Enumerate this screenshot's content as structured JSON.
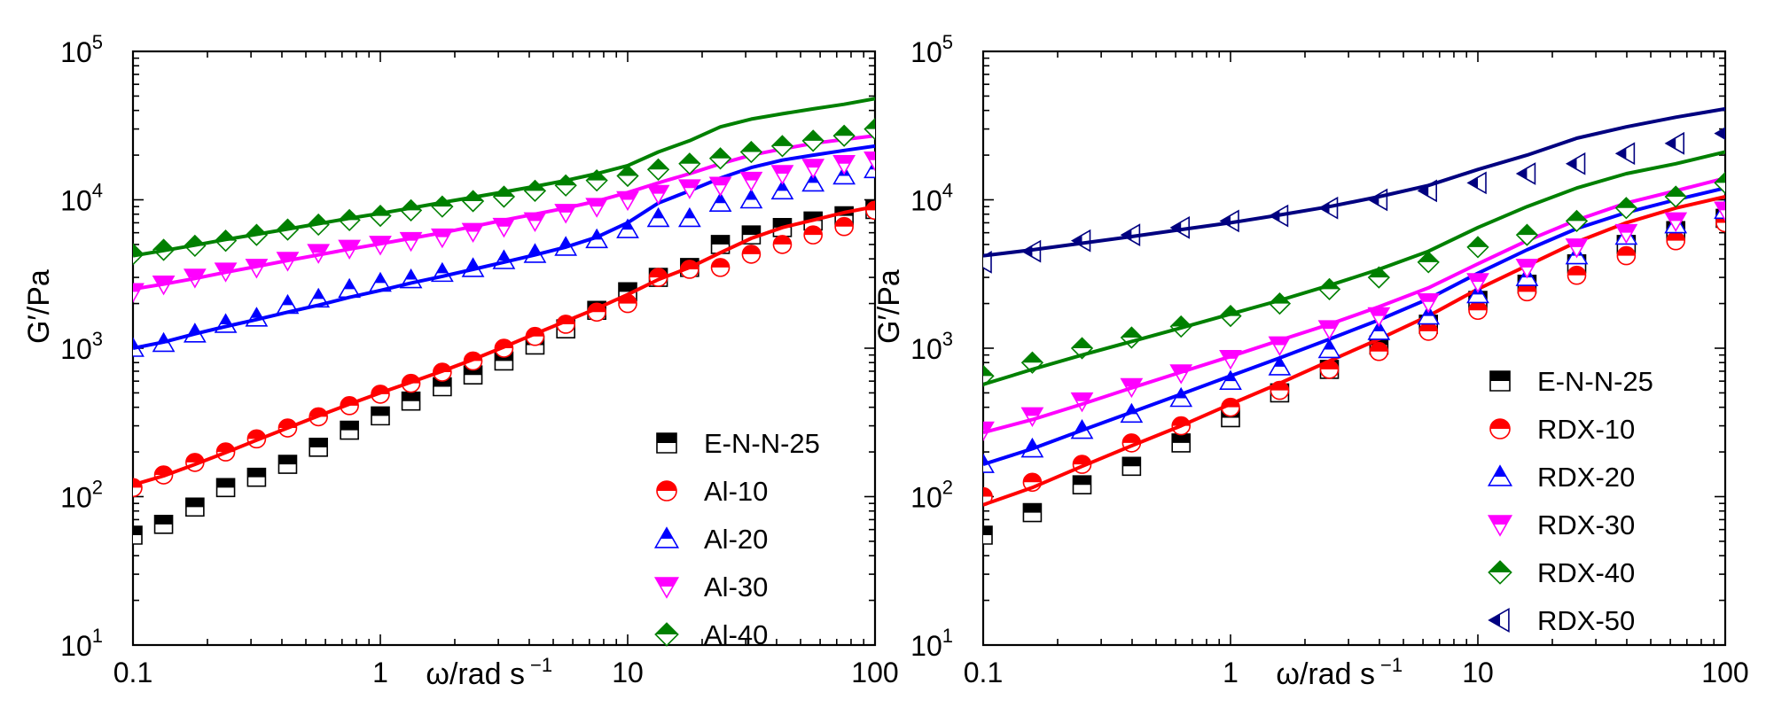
{
  "chart_data": [
    {
      "type": "scatter",
      "panel": "left",
      "xlabel": "ω/rad s",
      "xlabel_sup": "−1",
      "ylabel": "G′/Pa",
      "xscale": "log",
      "yscale": "log",
      "xlim": [
        0.1,
        100
      ],
      "ylim": [
        10,
        100000
      ],
      "x_ticks": [
        {
          "value": 0.1,
          "label": "0.1"
        },
        {
          "value": 1,
          "label": "1"
        },
        {
          "value": 10,
          "label": "10"
        },
        {
          "value": 100,
          "label": "100"
        }
      ],
      "y_ticks": [
        {
          "value": 10,
          "base": "10",
          "exp": "1"
        },
        {
          "value": 100,
          "base": "10",
          "exp": "2"
        },
        {
          "value": 1000,
          "base": "10",
          "exp": "3"
        },
        {
          "value": 10000,
          "base": "10",
          "exp": "4"
        },
        {
          "value": 100000,
          "base": "10",
          "exp": "5"
        }
      ],
      "legend_position": "bottom-right",
      "grid": false,
      "x": [
        0.1,
        0.133,
        0.178,
        0.237,
        0.316,
        0.422,
        0.562,
        0.75,
        1.0,
        1.33,
        1.78,
        2.37,
        3.16,
        4.22,
        5.62,
        7.5,
        10,
        13.3,
        17.8,
        23.7,
        31.6,
        42.2,
        56.2,
        75,
        100
      ],
      "series": [
        {
          "name": "E-N-N-25",
          "marker": "square",
          "color": "#000000",
          "values": [
            55,
            65,
            85,
            115,
            135,
            165,
            215,
            280,
            350,
            440,
            550,
            660,
            820,
            1050,
            1350,
            1800,
            2400,
            3000,
            3500,
            5000,
            5800,
            6500,
            7200,
            7800,
            8600
          ],
          "fit": null
        },
        {
          "name": "Al-10",
          "marker": "circle",
          "color": "#ff0000",
          "values": [
            115,
            140,
            170,
            200,
            245,
            290,
            345,
            410,
            490,
            580,
            690,
            820,
            1000,
            1200,
            1450,
            1750,
            2000,
            3000,
            3400,
            3500,
            4300,
            5000,
            5800,
            6600,
            8500
          ],
          "fit": [
            120,
            138,
            165,
            198,
            240,
            290,
            350,
            420,
            500,
            590,
            700,
            840,
            1020,
            1250,
            1520,
            1850,
            2300,
            2900,
            3500,
            4400,
            5500,
            6500,
            7300,
            8200,
            9000
          ]
        },
        {
          "name": "Al-20",
          "marker": "triangle-up",
          "color": "#0000ff",
          "values": [
            1000,
            1080,
            1250,
            1450,
            1600,
            1950,
            2150,
            2500,
            2750,
            2900,
            3200,
            3450,
            3900,
            4300,
            4800,
            5400,
            6300,
            7500,
            7500,
            9500,
            10000,
            11500,
            13000,
            14500,
            16000
          ],
          "fit": [
            1000,
            1100,
            1250,
            1400,
            1560,
            1750,
            1950,
            2200,
            2450,
            2750,
            3050,
            3400,
            3800,
            4250,
            4800,
            5600,
            7000,
            9500,
            11500,
            14000,
            16500,
            18500,
            20000,
            21500,
            23000
          ]
        },
        {
          "name": "Al-30",
          "marker": "triangle-down",
          "color": "#ff00ff",
          "values": [
            2400,
            2700,
            3000,
            3300,
            3500,
            3900,
            4400,
            4700,
            5000,
            5300,
            5600,
            6100,
            6600,
            7200,
            8200,
            9000,
            10000,
            11000,
            12000,
            12500,
            13500,
            15000,
            16500,
            17500,
            18500
          ],
          "fit": [
            2500,
            2700,
            2950,
            3250,
            3550,
            3900,
            4250,
            4650,
            5050,
            5500,
            6000,
            6600,
            7300,
            8000,
            8800,
            9800,
            11200,
            13000,
            15000,
            17500,
            20000,
            22000,
            24000,
            25500,
            27000
          ]
        },
        {
          "name": "Al-40",
          "marker": "diamond",
          "color": "#008000",
          "values": [
            4300,
            4600,
            4900,
            5300,
            5800,
            6300,
            6800,
            7300,
            7800,
            8500,
            9000,
            9800,
            10500,
            11500,
            12500,
            13500,
            14500,
            16000,
            17500,
            19000,
            21000,
            23000,
            25000,
            27000,
            30000
          ],
          "fit": [
            4200,
            4550,
            4950,
            5400,
            5850,
            6350,
            6900,
            7500,
            8100,
            8800,
            9600,
            10400,
            11300,
            12300,
            13500,
            15000,
            17000,
            21000,
            25000,
            31000,
            35000,
            38000,
            41000,
            44000,
            48000
          ]
        }
      ]
    },
    {
      "type": "scatter",
      "panel": "right",
      "xlabel": "ω/rad s",
      "xlabel_sup": "−1",
      "ylabel": "G′/Pa",
      "xscale": "log",
      "yscale": "log",
      "xlim": [
        0.1,
        100
      ],
      "ylim": [
        10,
        100000
      ],
      "x_ticks": [
        {
          "value": 0.1,
          "label": "0.1"
        },
        {
          "value": 1,
          "label": "1"
        },
        {
          "value": 10,
          "label": "10"
        },
        {
          "value": 100,
          "label": "100"
        }
      ],
      "y_ticks": [
        {
          "value": 10,
          "base": "10",
          "exp": "1"
        },
        {
          "value": 100,
          "base": "10",
          "exp": "2"
        },
        {
          "value": 1000,
          "base": "10",
          "exp": "3"
        },
        {
          "value": 10000,
          "base": "10",
          "exp": "4"
        },
        {
          "value": 100000,
          "base": "10",
          "exp": "5"
        }
      ],
      "legend_position": "bottom-right",
      "grid": false,
      "x": [
        0.1,
        0.158,
        0.251,
        0.398,
        0.631,
        1.0,
        1.58,
        2.51,
        3.98,
        6.31,
        10,
        15.8,
        25.1,
        39.8,
        63.1,
        100
      ],
      "series": [
        {
          "name": "E-N-N-25",
          "marker": "square",
          "color": "#000000",
          "values": [
            55,
            78,
            120,
            160,
            230,
            340,
            500,
            720,
            1050,
            1450,
            2100,
            2700,
            3700,
            5000,
            6200,
            7500
          ],
          "fit": null
        },
        {
          "name": "RDX-10",
          "marker": "circle",
          "color": "#ff0000",
          "values": [
            100,
            125,
            165,
            230,
            300,
            400,
            520,
            720,
            950,
            1300,
            1800,
            2400,
            3100,
            4200,
            5300,
            7000
          ],
          "fit": [
            88,
            115,
            160,
            220,
            300,
            420,
            580,
            820,
            1150,
            1650,
            2500,
            3600,
            5200,
            7000,
            8800,
            10500
          ]
        },
        {
          "name": "RDX-20",
          "marker": "triangle-up",
          "color": "#0000ff",
          "values": [
            165,
            210,
            280,
            360,
            460,
            600,
            750,
            980,
            1300,
            1650,
            2300,
            3000,
            4200,
            5700,
            6800,
            8500
          ],
          "fit": [
            165,
            210,
            280,
            370,
            490,
            650,
            860,
            1150,
            1550,
            2150,
            3200,
            4600,
            6400,
            8200,
            10000,
            12000
          ]
        },
        {
          "name": "RDX-30",
          "marker": "triangle-down",
          "color": "#ff00ff",
          "values": [
            280,
            350,
            440,
            550,
            680,
            850,
            1050,
            1350,
            1650,
            2050,
            2800,
            3500,
            4800,
            6000,
            7200,
            8500
          ],
          "fit": [
            270,
            330,
            420,
            540,
            690,
            880,
            1130,
            1450,
            1900,
            2550,
            3700,
            5300,
            7300,
            9500,
            11500,
            14000
          ]
        },
        {
          "name": "RDX-40",
          "marker": "diamond",
          "color": "#008000",
          "values": [
            650,
            800,
            1000,
            1180,
            1400,
            1650,
            2000,
            2500,
            3000,
            3800,
            4800,
            5800,
            7200,
            8800,
            10500,
            13000
          ],
          "fit": [
            570,
            720,
            900,
            1110,
            1370,
            1700,
            2100,
            2650,
            3400,
            4500,
            6500,
            9000,
            12000,
            15000,
            17500,
            21000
          ]
        },
        {
          "name": "RDX-50",
          "marker": "triangle-left",
          "color": "#000080",
          "values": [
            3800,
            4500,
            5300,
            5800,
            6500,
            7200,
            7800,
            8800,
            10000,
            11500,
            13000,
            15000,
            17500,
            20500,
            24000,
            28000
          ],
          "fit": [
            4200,
            4600,
            5100,
            5650,
            6300,
            7000,
            7900,
            9000,
            10500,
            12500,
            16000,
            20000,
            26000,
            31000,
            36000,
            41000
          ]
        }
      ]
    }
  ]
}
